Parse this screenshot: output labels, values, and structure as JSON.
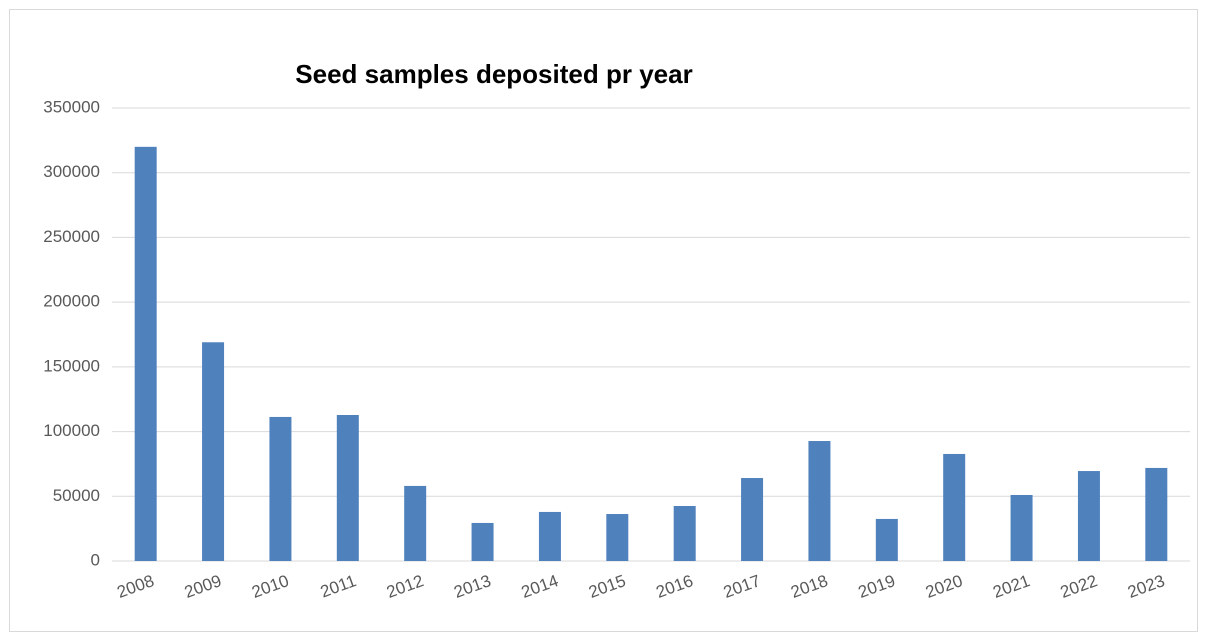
{
  "chart_data": {
    "type": "bar",
    "title": "Seed samples deposited pr year",
    "categories": [
      "2008",
      "2009",
      "2010",
      "2011",
      "2012",
      "2013",
      "2014",
      "2015",
      "2016",
      "2017",
      "2018",
      "2019",
      "2020",
      "2021",
      "2022",
      "2023"
    ],
    "values": [
      320000,
      169000,
      111300,
      112800,
      58000,
      29400,
      37900,
      36300,
      42500,
      64100,
      92700,
      32500,
      82700,
      51000,
      69500,
      71900
    ],
    "color": "#4f81bd",
    "ylim": [
      0,
      350000
    ],
    "yticks": [
      0,
      50000,
      100000,
      150000,
      200000,
      250000,
      300000,
      350000
    ],
    "grid": true
  }
}
